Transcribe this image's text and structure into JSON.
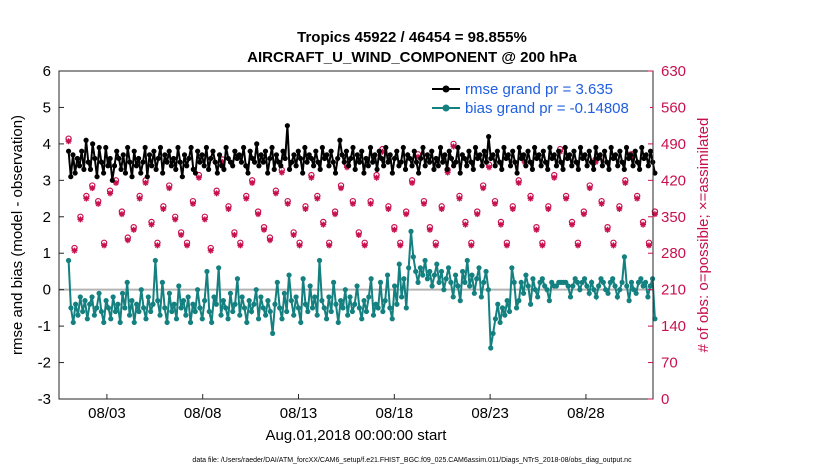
{
  "chart_data": {
    "type": "line",
    "title_line1": "Tropics 45922 / 46454 = 98.855%",
    "title_line2": "AIRCRAFT_U_WIND_COMPONENT @ 200 hPa",
    "ylabel": "rmse and bias (model - observation)",
    "ylabel_right": "# of obs: o=possible; ×=assimilated",
    "xlabel": "Aug.01,2018 00:00:00 start",
    "footnote": "data file: /Users/raeder/DAI/ATM_forcXX/CAM6_setup/f.e21.FHIST_BGC.f09_025.CAM6assim.011/Diags_NTrS_2018-08/obs_diag_output.nc",
    "ylim": [
      -3,
      6
    ],
    "ylim_right": [
      0,
      630
    ],
    "xlim": [
      0.5,
      31.5
    ],
    "yticks": [
      "-3",
      "-2",
      "-1",
      "0",
      "1",
      "2",
      "3",
      "4",
      "5",
      "6"
    ],
    "yticks_right": [
      "0",
      "70",
      "140",
      "210",
      "280",
      "350",
      "420",
      "490",
      "560",
      "630"
    ],
    "xticks": [
      {
        "day": 3,
        "label": "08/03"
      },
      {
        "day": 8,
        "label": "08/08"
      },
      {
        "day": 13,
        "label": "08/13"
      },
      {
        "day": 18,
        "label": "08/18"
      },
      {
        "day": 23,
        "label": "08/23"
      },
      {
        "day": 28,
        "label": "08/28"
      }
    ],
    "colors": {
      "rmse": "#000000",
      "bias": "#148080",
      "obs": "#c8104f",
      "legend_text": "#1f5fe0",
      "zero_line": "#b4b4b4"
    },
    "series": [
      {
        "name": "rmse grand pr = 3.635",
        "values": [
          3.8,
          3.1,
          3.7,
          3.2,
          3.6,
          3.4,
          3.8,
          3.3,
          4.1,
          3.5,
          3.3,
          4.0,
          3.6,
          3.1,
          3.9,
          3.5,
          3.2,
          3.9,
          3.4,
          3.6,
          3.0,
          3.4,
          3.8,
          3.6,
          3.3,
          3.7,
          3.2,
          3.9,
          3.5,
          3.1,
          3.8,
          3.4,
          3.6,
          3.2,
          3.5,
          3.9,
          3.1,
          3.7,
          3.4,
          3.8,
          3.3,
          3.6,
          3.9,
          3.2,
          3.7,
          3.5,
          3.8,
          3.4,
          3.6,
          3.3,
          3.9,
          3.5,
          3.1,
          3.7,
          3.4,
          3.6,
          3.9,
          3.3,
          3.2,
          3.8,
          3.5,
          3.7,
          3.4,
          3.9,
          3.3,
          3.6,
          3.8,
          3.5,
          3.2,
          3.7,
          3.4,
          3.3,
          3.9,
          3.6,
          3.5,
          3.4,
          3.8,
          3.6,
          3.7,
          3.5,
          3.9,
          3.4,
          3.2,
          3.8,
          3.6,
          3.5,
          4.0,
          3.4,
          3.7,
          3.5,
          3.8,
          3.2,
          3.6,
          3.9,
          3.3,
          3.7,
          3.5,
          3.4,
          3.8,
          3.6,
          4.5,
          3.3,
          3.5,
          3.7,
          3.4,
          3.8,
          3.6,
          3.2,
          3.9,
          3.5,
          3.7,
          3.6,
          3.4,
          3.8,
          3.5,
          3.3,
          3.9,
          3.6,
          3.7,
          3.4,
          3.8,
          3.5,
          3.2,
          3.6,
          4.1,
          3.7,
          3.5,
          3.8,
          3.4,
          3.6,
          3.9,
          3.3,
          3.7,
          3.5,
          3.8,
          3.2,
          3.6,
          3.4,
          3.9,
          3.5,
          3.7,
          3.3,
          3.8,
          3.6,
          3.4,
          3.9,
          3.5,
          3.7,
          3.2,
          3.6,
          3.8,
          3.4,
          3.5,
          3.9,
          3.3,
          3.7,
          3.6,
          3.4,
          3.8,
          3.5,
          3.2,
          3.6,
          3.9,
          3.4,
          3.7,
          3.5,
          3.8,
          3.3,
          3.6,
          3.4,
          3.9,
          3.5,
          3.7,
          3.3,
          3.8,
          3.6,
          3.4,
          3.5,
          3.9,
          3.2,
          3.7,
          3.6,
          3.4,
          3.8,
          3.5,
          3.3,
          3.9,
          3.6,
          3.7,
          3.4,
          3.8,
          3.5,
          4.2,
          3.6,
          3.7,
          3.4,
          3.8,
          3.5,
          3.3,
          3.9,
          3.6,
          3.7,
          3.4,
          3.8,
          3.5,
          3.2,
          3.9,
          3.6,
          3.7,
          3.4,
          3.8,
          3.5,
          3.3,
          3.9,
          3.6,
          3.7,
          3.4,
          3.8,
          3.5,
          3.3,
          3.9,
          3.6,
          3.7,
          3.4,
          3.8,
          3.5,
          3.3,
          3.9,
          3.6,
          3.7,
          3.4,
          3.8,
          3.5,
          3.3,
          3.9,
          3.6,
          3.7,
          3.4,
          3.8,
          3.5,
          3.3,
          3.9,
          3.6,
          3.7,
          3.4,
          3.8,
          3.5,
          3.3,
          3.9,
          3.6,
          3.7,
          3.4,
          3.8,
          3.5,
          3.3,
          3.9,
          3.6,
          3.7,
          3.4,
          3.8,
          3.5,
          3.3,
          3.9,
          3.6,
          3.7,
          3.4,
          3.8,
          3.5,
          3.2
        ]
      },
      {
        "name": "bias grand pr = -0.14808",
        "values": [
          0.8,
          -0.5,
          -0.9,
          -0.4,
          -0.7,
          -0.2,
          -0.6,
          -0.3,
          -0.8,
          -0.4,
          -0.2,
          -0.7,
          -0.5,
          -0.1,
          -0.6,
          -0.9,
          -0.3,
          -0.5,
          -0.8,
          -0.2,
          -0.6,
          -0.4,
          -0.9,
          -0.1,
          -0.5,
          0.2,
          -0.7,
          -0.3,
          -0.9,
          -0.4,
          -0.6,
          0.0,
          -0.5,
          -0.8,
          -0.2,
          -0.6,
          -0.4,
          0.8,
          -0.3,
          -0.7,
          0.2,
          -0.5,
          -0.9,
          -0.1,
          -0.6,
          -0.4,
          -0.8,
          0.1,
          -0.5,
          -0.3,
          -0.7,
          -0.2,
          -0.9,
          -0.4,
          -0.6,
          0.0,
          -0.5,
          -0.8,
          -0.3,
          0.5,
          -0.6,
          -0.9,
          -0.2,
          -0.4,
          0.6,
          -0.7,
          -0.3,
          -0.5,
          -0.8,
          -0.1,
          -0.6,
          -0.4,
          0.3,
          -0.7,
          -0.2,
          -0.5,
          -0.9,
          -0.3,
          -0.6,
          -0.4,
          0.0,
          -0.8,
          -0.2,
          -0.5,
          -0.7,
          -0.3,
          -0.6,
          -1.2,
          -0.4,
          0.2,
          -0.5,
          -0.8,
          -0.1,
          -0.6,
          0.4,
          -0.3,
          -0.7,
          -0.2,
          -0.5,
          -0.9,
          0.3,
          -0.4,
          -0.6,
          0.1,
          -0.5,
          -0.2,
          -0.7,
          0.8,
          -0.3,
          -0.5,
          -0.8,
          -0.2,
          -0.6,
          0.2,
          -0.4,
          -0.9,
          -0.3,
          -0.5,
          0.0,
          -0.7,
          -0.2,
          -0.6,
          -0.4,
          0.1,
          -0.5,
          -0.8,
          -0.3,
          -0.6,
          -0.2,
          0.3,
          -0.7,
          -0.4,
          -0.5,
          0.2,
          -0.6,
          -0.3,
          0.4,
          -0.5,
          -0.8,
          0.1,
          -0.4,
          0.7,
          -0.2,
          0.3,
          -0.5,
          0.6,
          1.6,
          0.9,
          0.5,
          0.2,
          0.6,
          0.4,
          0.8,
          0.3,
          0.5,
          0.1,
          0.4,
          0.7,
          0.2,
          0.5,
          0.0,
          0.3,
          0.6,
          0.2,
          -0.2,
          0.4,
          0.1,
          -0.3,
          0.5,
          0.2,
          0.8,
          0.1,
          0.4,
          -0.1,
          0.3,
          0.6,
          -0.2,
          0.2,
          0.5,
          0.0,
          -1.6,
          -1.2,
          -0.8,
          -0.4,
          -0.9,
          -0.5,
          -0.7,
          -0.3,
          -0.6,
          0.6,
          0.2,
          -0.5,
          -0.3,
          0.2,
          -0.1,
          0.4,
          0.1,
          -0.4,
          0.3,
          0.0,
          -0.2,
          0.2,
          0.3,
          0.1,
          0.0,
          -0.3,
          0.2,
          0.1,
          0.1,
          0.2,
          0.2,
          0.2,
          0.2,
          0.1,
          -0.2,
          0.1,
          0.3,
          0.2,
          0.0,
          0.2,
          0.3,
          0.1,
          -0.1,
          0.2,
          0.0,
          -0.2,
          0.1,
          0.3,
          0.2,
          0.0,
          -0.1,
          0.2,
          0.3,
          0.1,
          -0.2,
          0.0,
          0.2,
          0.9,
          0.1,
          -0.3,
          0.2,
          0.0,
          -0.1,
          0.2,
          0.3,
          0.1,
          0.2,
          -0.2,
          0.1,
          0.3,
          -0.8
        ]
      }
    ],
    "obs_possible": [
      500,
      290,
      350,
      390,
      410,
      380,
      300,
      400,
      420,
      360,
      310,
      330,
      390,
      420,
      340,
      300,
      370,
      410,
      350,
      320,
      300,
      380,
      430,
      350,
      290,
      400,
      460,
      370,
      320,
      300,
      390,
      420,
      360,
      330,
      310,
      400,
      440,
      380,
      320,
      300,
      370,
      430,
      390,
      340,
      300,
      360,
      410,
      450,
      380,
      320,
      300,
      380,
      430,
      480,
      370,
      330,
      300,
      360,
      420,
      470,
      380,
      330,
      300,
      370,
      440,
      490,
      390,
      340,
      300,
      360,
      410,
      450,
      380,
      340,
      300,
      370,
      420,
      460,
      390,
      330,
      300,
      370,
      430,
      480,
      390,
      340,
      300,
      360,
      410,
      460,
      380,
      330,
      300,
      370,
      420,
      470,
      390,
      340,
      300,
      360
    ],
    "obs_assimilated": [
      495,
      285,
      345,
      385,
      405,
      375,
      295,
      395,
      415,
      355,
      305,
      325,
      385,
      415,
      335,
      295,
      365,
      405,
      345,
      315,
      295,
      375,
      425,
      345,
      285,
      395,
      455,
      365,
      315,
      295,
      385,
      415,
      355,
      325,
      305,
      395,
      435,
      375,
      315,
      295,
      365,
      425,
      385,
      335,
      295,
      355,
      405,
      445,
      375,
      315,
      295,
      375,
      425,
      475,
      365,
      325,
      295,
      355,
      415,
      465,
      375,
      325,
      295,
      365,
      435,
      485,
      385,
      335,
      295,
      355,
      405,
      445,
      375,
      335,
      295,
      365,
      415,
      455,
      385,
      325,
      295,
      365,
      425,
      475,
      385,
      335,
      295,
      355,
      405,
      455,
      375,
      325,
      295,
      365,
      415,
      465,
      385,
      335,
      295,
      355
    ]
  }
}
